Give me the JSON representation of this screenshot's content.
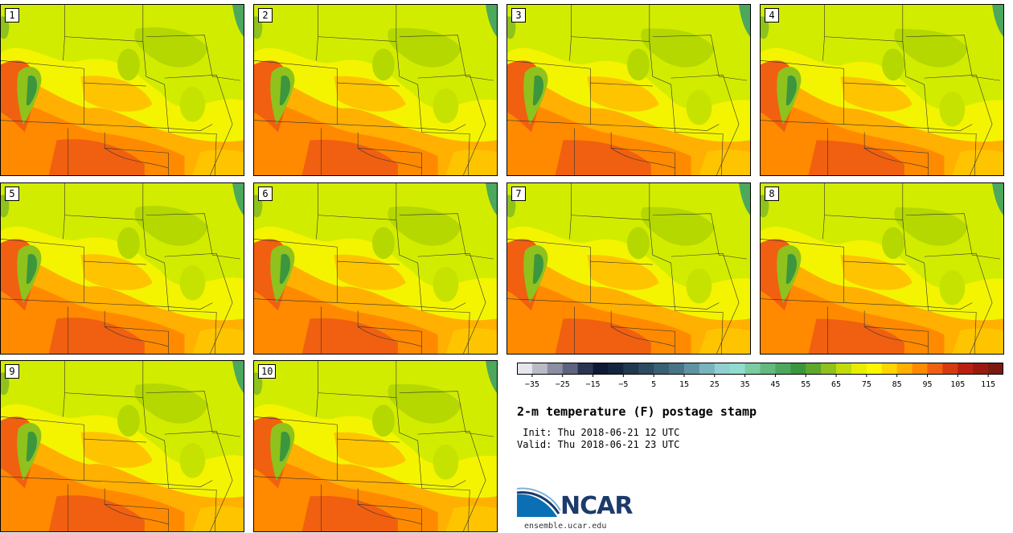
{
  "members": [
    "1",
    "2",
    "3",
    "4",
    "5",
    "6",
    "7",
    "8",
    "9",
    "10"
  ],
  "title": "2-m temperature (F) postage stamp",
  "init_label": " Init: Thu 2018-06-21 12 UTC",
  "valid_label": "Valid: Thu 2018-06-21 23 UTC",
  "colorbar": {
    "ticks": [
      "−35",
      "−25",
      "−15",
      "−5",
      "5",
      "15",
      "25",
      "35",
      "45",
      "55",
      "65",
      "75",
      "85",
      "95",
      "105",
      "115"
    ],
    "colors": [
      "#e6e6ec",
      "#b9bbc7",
      "#8c8fa3",
      "#5e6380",
      "#2c3454",
      "#0d1a35",
      "#14263f",
      "#20394f",
      "#2d4c61",
      "#3a6073",
      "#487585",
      "#5f93a1",
      "#79b3bd",
      "#92cfd1",
      "#8fdcd0",
      "#7ccba1",
      "#63b97e",
      "#4ca85d",
      "#3c963d",
      "#5ea82c",
      "#8fc21c",
      "#c0dc0c",
      "#e8ee00",
      "#fff700",
      "#ffd500",
      "#ffb000",
      "#ff8a00",
      "#f06010",
      "#d83a10",
      "#b82010",
      "#9a1a10",
      "#7a1a10"
    ]
  },
  "logo_text": "NCAR",
  "url": "ensemble.ucar.edu"
}
